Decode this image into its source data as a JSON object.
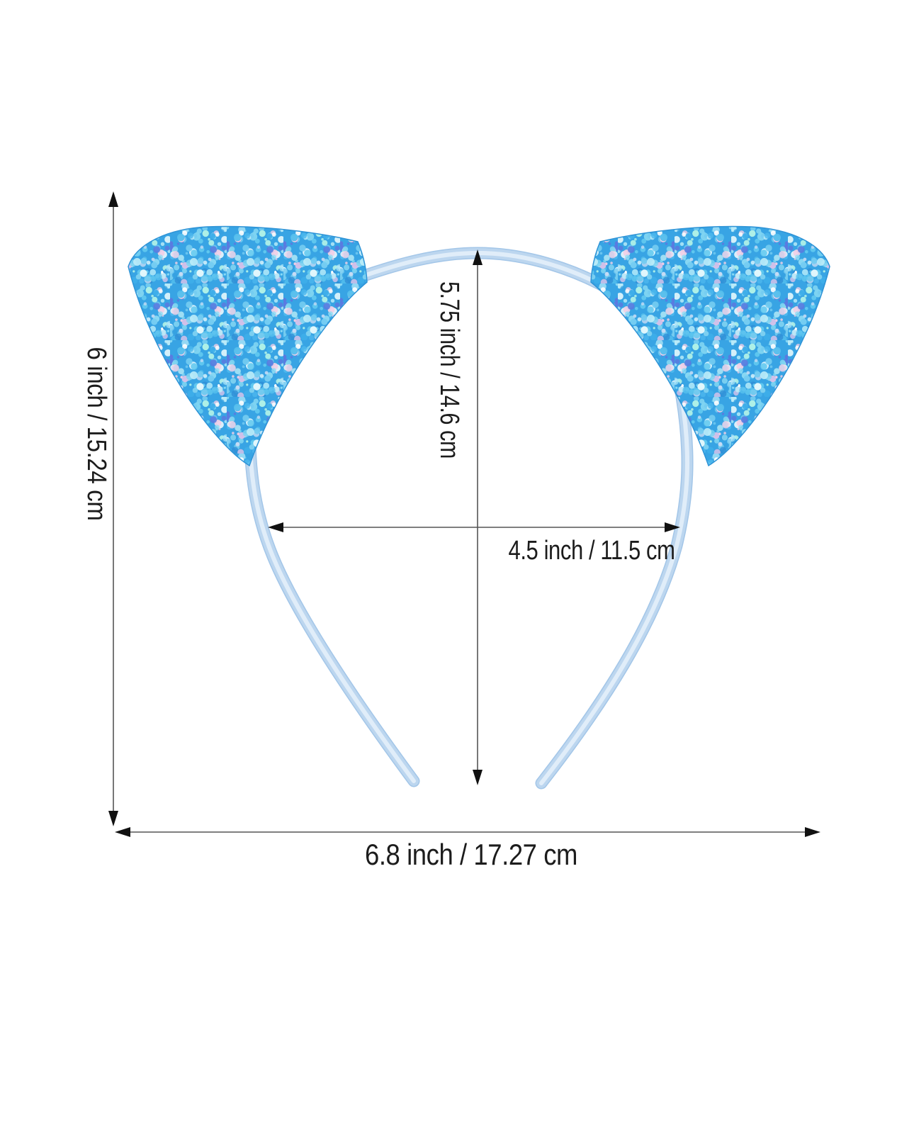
{
  "image": {
    "kind": "product-dimension-diagram",
    "subject": "glitter cat-ear headband"
  },
  "dimensions": {
    "overall_height": {
      "label": "6 inch / 15.24 cm",
      "orientation": "vertical"
    },
    "band_height": {
      "label": "5.75 inch / 14.6 cm",
      "orientation": "vertical"
    },
    "inner_width": {
      "label": "4.5 inch / 11.5 cm",
      "orientation": "horizontal"
    },
    "overall_width": {
      "label": "6.8 inch / 17.27 cm",
      "orientation": "horizontal"
    }
  },
  "colors": {
    "background": "#ffffff",
    "band": "#bcd6ef",
    "band_edge": "#a3c6e8",
    "band_highlight": "#e0edf9",
    "ear_base": "#38a4e4",
    "ear_edge": "#2e93d6",
    "dimension_line": "#555555",
    "arrowhead": "#111111",
    "label_text": "#1c1c1c",
    "glitter_palette": [
      "#7fd4f2",
      "#4db8ee",
      "#a5e2f6",
      "#ffffff",
      "#2f8fd6",
      "#bfeef9",
      "#62c9f0",
      "#8fdcf4",
      "#d9c2ea",
      "#f2cfe6",
      "#5a7ae0",
      "#aef0e6",
      "#e8f9fd",
      "#3fb0ea",
      "#74ccf1",
      "#55c0ee",
      "#c9ddf5",
      "#35a0e0"
    ]
  }
}
